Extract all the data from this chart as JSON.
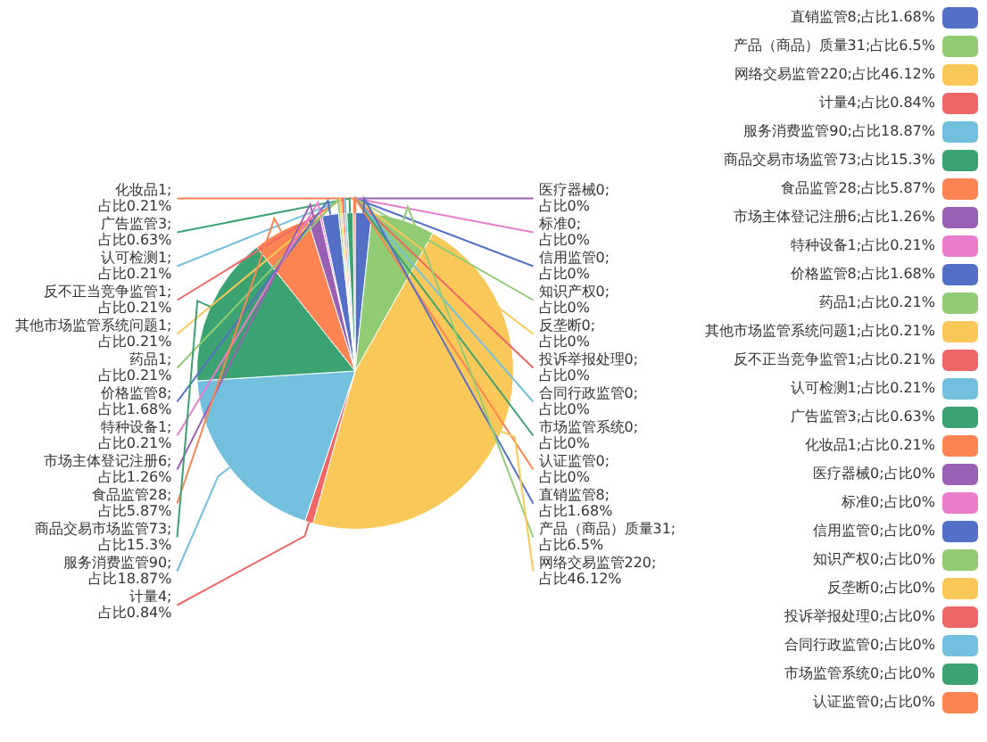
{
  "chart_data": {
    "type": "pie",
    "legend": "right",
    "categories": [
      "直销监管8;占比1.68%",
      "产品（商品）质量31;占比6.5%",
      "网络交易监管220;占比46.12%",
      "计量4;占比0.84%",
      "服务消费监管90;占比18.87%",
      "商品交易市场监管73;占比15.3%",
      "食品监管28;占比5.87%",
      "市场主体登记注册6;占比1.26%",
      "特种设备1;占比0.21%",
      "价格监管8;占比1.68%",
      "药品1;占比0.21%",
      "其他市场监管系统问题1;占比0.21%",
      "反不正当竞争监管1;占比0.21%",
      "认可检测1;占比0.21%",
      "广告监管3;占比0.63%",
      "化妆品1;占比0.21%",
      "医疗器械0;占比0%",
      "标准0;占比0%",
      "信用监管0;占比0%",
      "知识产权0;占比0%",
      "反垄断0;占比0%",
      "投诉举报处理0;占比0%",
      "合同行政监管0;占比0%",
      "市场监管系统0;占比0%",
      "认证监管0;占比0%"
    ],
    "values": [
      8,
      31,
      220,
      4,
      90,
      73,
      28,
      6,
      1,
      8,
      1,
      1,
      1,
      1,
      3,
      1,
      0,
      0,
      0,
      0,
      0,
      0,
      0,
      0,
      0
    ],
    "colors": [
      "#5470c6",
      "#91cc75",
      "#fac858",
      "#ee6666",
      "#73c0de",
      "#3ba272",
      "#fc8452",
      "#9a60b4",
      "#ea7ccc",
      "#5470c6",
      "#91cc75",
      "#fac858",
      "#ee6666",
      "#73c0de",
      "#3ba272",
      "#fc8452",
      "#9a60b4",
      "#ea7ccc",
      "#5470c6",
      "#91cc75",
      "#fac858",
      "#ee6666",
      "#73c0de",
      "#3ba272",
      "#fc8452"
    ]
  }
}
